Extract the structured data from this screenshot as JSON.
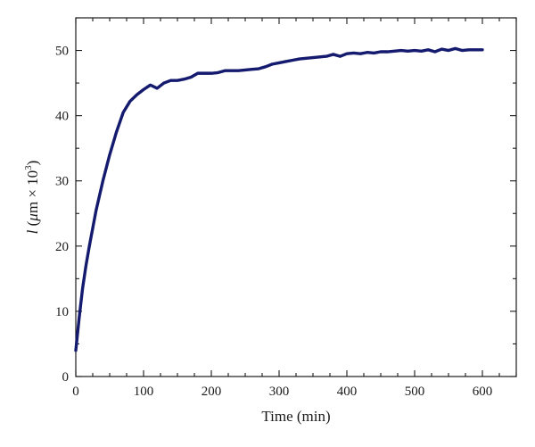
{
  "chart_data": {
    "type": "line",
    "title": "",
    "xlabel": "Time (min)",
    "ylabel": {
      "italic": "l",
      "paren_open": " (",
      "mu": "μ",
      "m_times_10": "m × 10",
      "exponent": "3",
      "paren_close": ")"
    },
    "xlim": [
      0,
      650
    ],
    "ylim": [
      0,
      55
    ],
    "xticks_major": [
      0,
      100,
      200,
      300,
      400,
      500,
      600
    ],
    "yticks_major": [
      0,
      10,
      20,
      30,
      40,
      50
    ],
    "xtick_labels": [
      "0",
      "100",
      "200",
      "300",
      "400",
      "500",
      "600"
    ],
    "ytick_labels": [
      "0",
      "10",
      "20",
      "30",
      "40",
      "50"
    ],
    "xticks_minor_step": 25,
    "yticks_minor_step": 5,
    "grid": false,
    "legend": "none",
    "series": [
      {
        "color": "#141a6e",
        "x": [
          0,
          5,
          10,
          15,
          20,
          30,
          40,
          50,
          60,
          70,
          80,
          90,
          100,
          110,
          120,
          130,
          140,
          150,
          160,
          170,
          180,
          190,
          200,
          210,
          220,
          230,
          240,
          250,
          260,
          270,
          280,
          290,
          300,
          310,
          320,
          330,
          340,
          350,
          360,
          370,
          380,
          390,
          400,
          410,
          420,
          430,
          440,
          450,
          460,
          470,
          480,
          490,
          500,
          510,
          520,
          530,
          540,
          550,
          560,
          570,
          580,
          590,
          600
        ],
        "y": [
          4,
          9,
          13.5,
          17,
          20,
          25.5,
          30,
          34,
          37.5,
          40.5,
          42.2,
          43.2,
          44,
          44.7,
          44.2,
          45,
          45.4,
          45.4,
          45.6,
          45.9,
          46.5,
          46.5,
          46.5,
          46.6,
          46.9,
          46.9,
          46.9,
          47,
          47.1,
          47.2,
          47.5,
          47.9,
          48.1,
          48.3,
          48.5,
          48.7,
          48.8,
          48.9,
          49,
          49.1,
          49.4,
          49.1,
          49.5,
          49.6,
          49.5,
          49.7,
          49.6,
          49.8,
          49.8,
          49.9,
          50,
          49.9,
          50,
          49.9,
          50.1,
          49.8,
          50.2,
          50,
          50.3,
          50,
          50.1,
          50.1,
          50.1
        ]
      }
    ]
  }
}
